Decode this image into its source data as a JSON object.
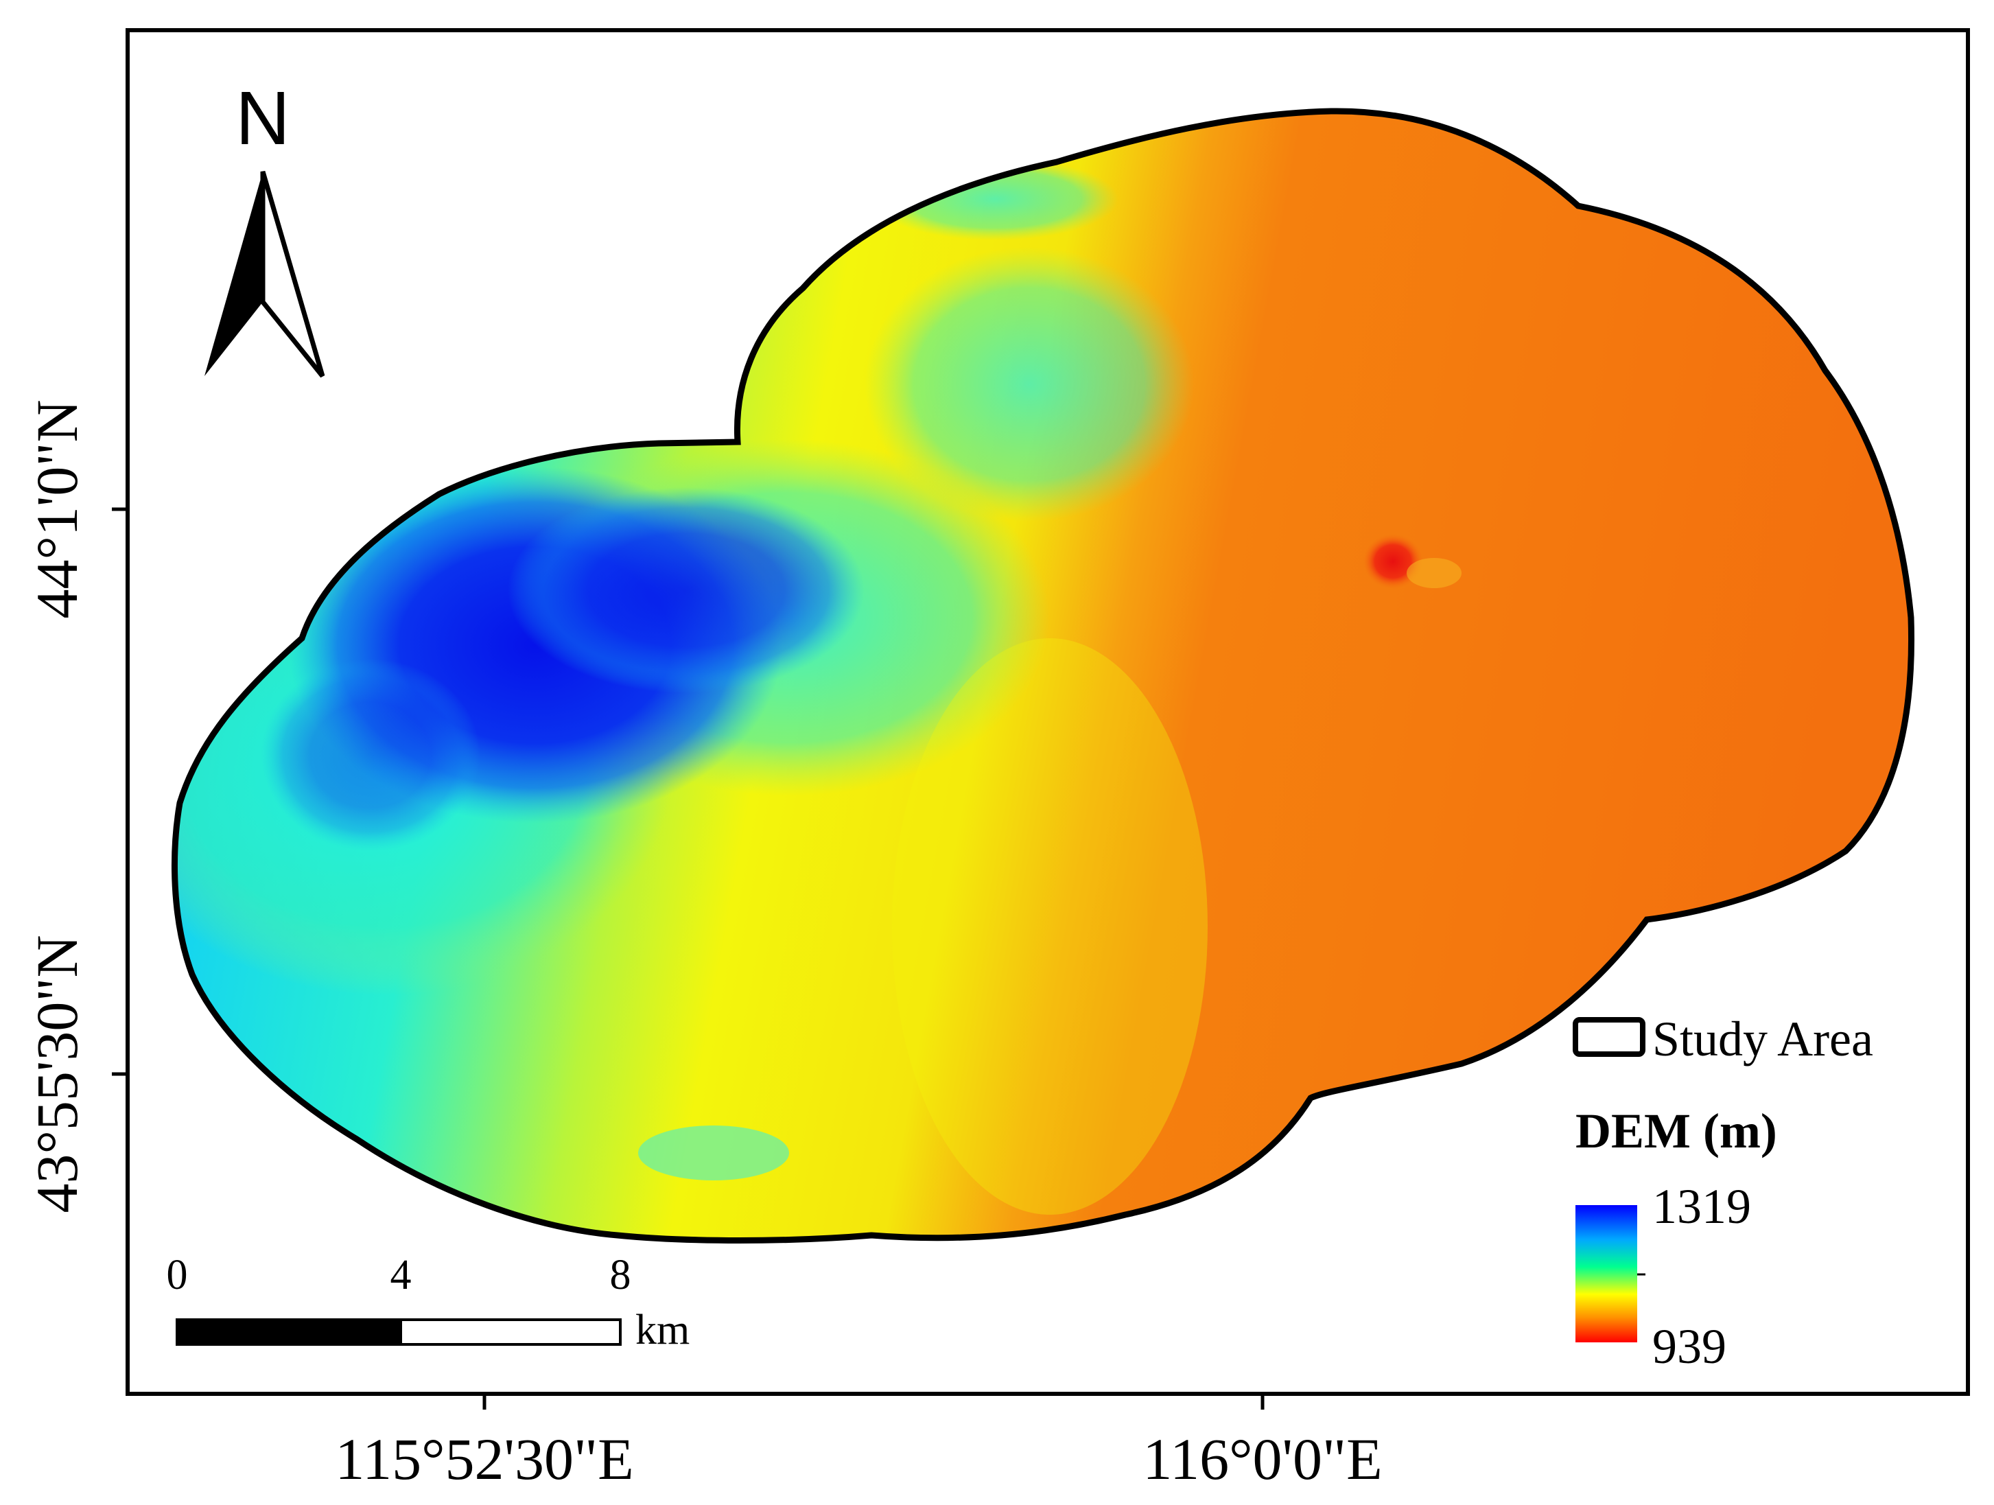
{
  "north_arrow": {
    "label": "N"
  },
  "axes": {
    "x_labels": [
      "115°52'30\"E",
      "116°0'0\"E"
    ],
    "y_labels": [
      "44°1'0\"N",
      "43°55'30\"N"
    ]
  },
  "scale_bar": {
    "ticks": [
      "0",
      "4",
      "8"
    ],
    "unit": "km"
  },
  "legend": {
    "study_area_label": "Study Area",
    "dem_title": "DEM (m)",
    "dem_max": "1319",
    "dem_min": "939",
    "colors": [
      "#0000ff",
      "#00ffff",
      "#ffff00",
      "#ff8c00",
      "#ff0000"
    ]
  },
  "map": {
    "colors": {
      "high": "#0a14f0",
      "mid_high": "#12e8f0",
      "mid": "#f2f20a",
      "low": "#f5780a",
      "lowest": "#ee1c14",
      "outline": "#000000"
    }
  }
}
